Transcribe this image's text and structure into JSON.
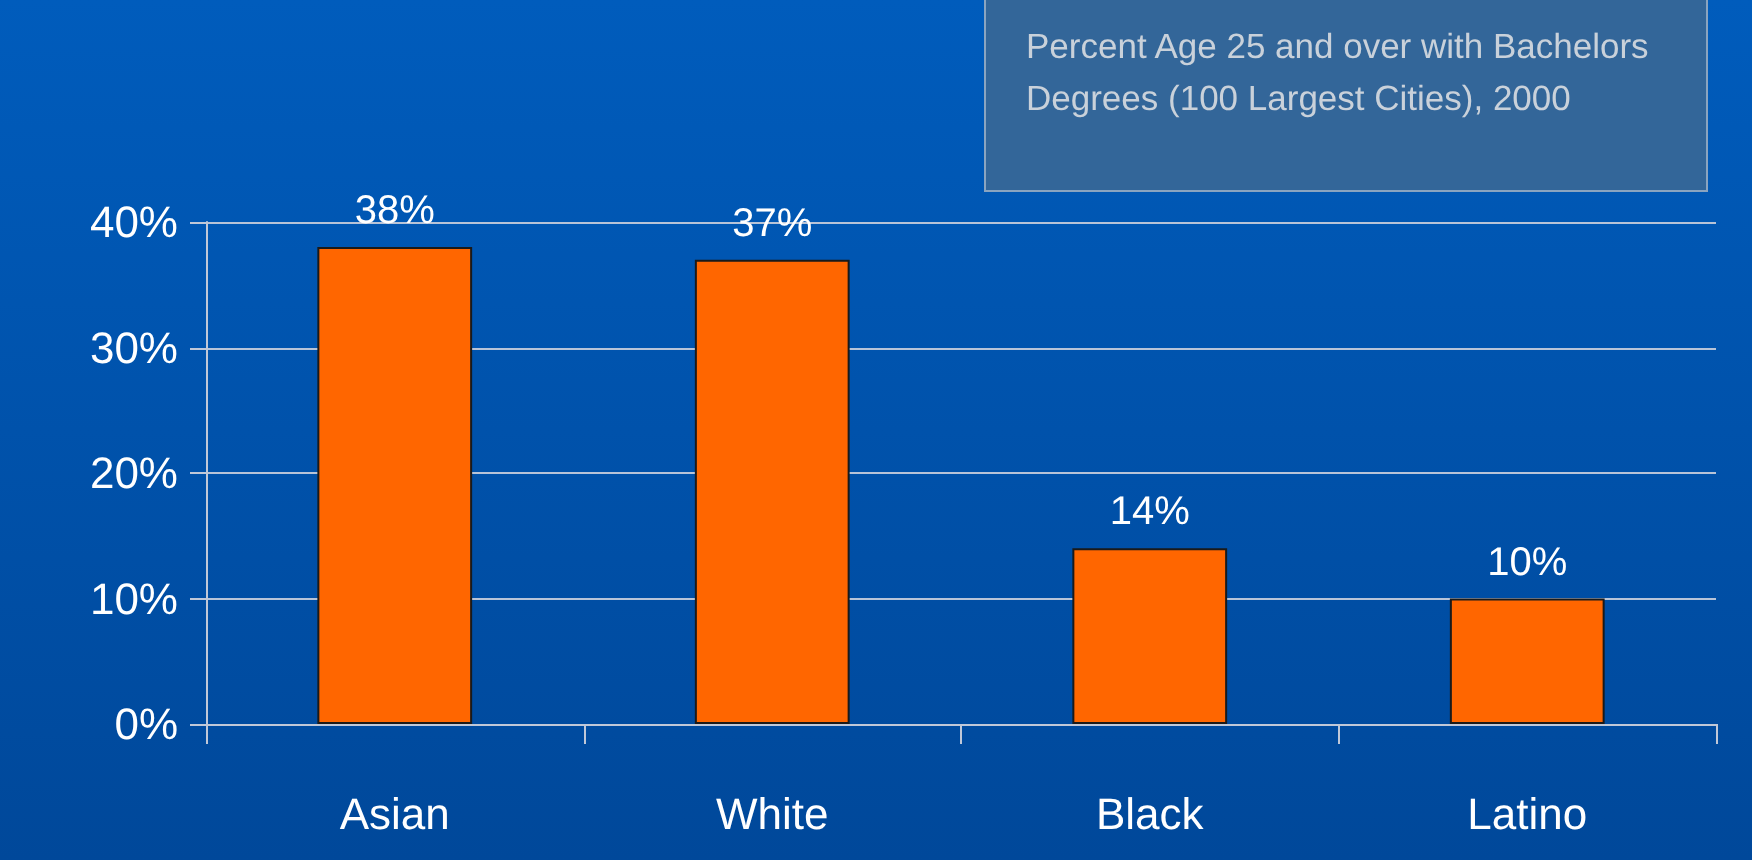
{
  "chart_data": {
    "type": "bar",
    "title": "Percent Age 25 and over with Bachelors Degrees (100 Largest Cities), 2000",
    "categories": [
      "Asian",
      "White",
      "Black",
      "Latino"
    ],
    "values": [
      38,
      37,
      14,
      10
    ],
    "color": "#ff6600",
    "value_labels": [
      "38%",
      "37%",
      "14%",
      "10%"
    ],
    "ylim": [
      0,
      40
    ],
    "yticks": [
      {
        "value": 0,
        "label": "0%"
      },
      {
        "value": 10,
        "label": "10%"
      },
      {
        "value": 20,
        "label": "20%"
      },
      {
        "value": 30,
        "label": "30%"
      },
      {
        "value": 40,
        "label": "40%"
      }
    ],
    "grid": "y"
  }
}
